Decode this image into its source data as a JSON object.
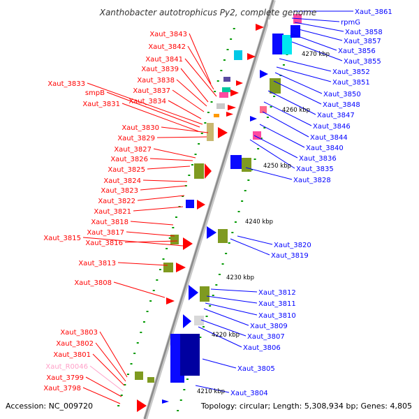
{
  "title": "Xanthobacter autotrophicus Py2, complete genome",
  "footer": {
    "accession": "Accession: NC_009720",
    "summary": "Topology: circular; Length: 5,308,934 bp; Genes: 4,805"
  },
  "colors": {
    "forward": "#ff0000",
    "reverse": "#0000ff",
    "rna": "#ffa0c8",
    "backbone": "#999999",
    "olive": "#7f9a20",
    "tick": "#009900"
  },
  "kbp_ticks": [
    "4270 kbp",
    "4260 kbp",
    "4250 kbp",
    "4240 kbp",
    "4230 kbp",
    "4220 kbp",
    "4210 kbp"
  ],
  "left_labels": [
    {
      "text": "Xaut_3843",
      "strand": "forward"
    },
    {
      "text": "Xaut_3842",
      "strand": "forward"
    },
    {
      "text": "Xaut_3841",
      "strand": "forward"
    },
    {
      "text": "Xaut_3839",
      "strand": "forward"
    },
    {
      "text": "Xaut_3838",
      "strand": "forward"
    },
    {
      "text": "Xaut_3833",
      "strand": "forward"
    },
    {
      "text": "Xaut_3837",
      "strand": "forward"
    },
    {
      "text": "smpB",
      "strand": "forward"
    },
    {
      "text": "Xaut_3831",
      "strand": "forward"
    },
    {
      "text": "Xaut_3834",
      "strand": "forward"
    },
    {
      "text": "Xaut_3830",
      "strand": "forward"
    },
    {
      "text": "Xaut_3829",
      "strand": "forward"
    },
    {
      "text": "Xaut_3827",
      "strand": "forward"
    },
    {
      "text": "Xaut_3826",
      "strand": "forward"
    },
    {
      "text": "Xaut_3825",
      "strand": "forward"
    },
    {
      "text": "Xaut_3824",
      "strand": "forward"
    },
    {
      "text": "Xaut_3823",
      "strand": "forward"
    },
    {
      "text": "Xaut_3822",
      "strand": "forward"
    },
    {
      "text": "Xaut_3821",
      "strand": "forward"
    },
    {
      "text": "Xaut_3818",
      "strand": "forward"
    },
    {
      "text": "Xaut_3817",
      "strand": "forward"
    },
    {
      "text": "Xaut_3815",
      "strand": "forward"
    },
    {
      "text": "Xaut_3816",
      "strand": "forward"
    },
    {
      "text": "Xaut_3813",
      "strand": "forward"
    },
    {
      "text": "Xaut_3808",
      "strand": "forward"
    },
    {
      "text": "Xaut_3803",
      "strand": "forward"
    },
    {
      "text": "Xaut_3802",
      "strand": "forward"
    },
    {
      "text": "Xaut_3801",
      "strand": "forward"
    },
    {
      "text": "Xaut_R0046",
      "strand": "rna"
    },
    {
      "text": "Xaut_3799",
      "strand": "forward"
    },
    {
      "text": "Xaut_3798",
      "strand": "forward"
    }
  ],
  "right_labels": [
    {
      "text": "Xaut_3861",
      "strand": "reverse"
    },
    {
      "text": "rpmG",
      "strand": "reverse"
    },
    {
      "text": "Xaut_3858",
      "strand": "reverse"
    },
    {
      "text": "Xaut_3857",
      "strand": "reverse"
    },
    {
      "text": "Xaut_3856",
      "strand": "reverse"
    },
    {
      "text": "Xaut_3855",
      "strand": "reverse"
    },
    {
      "text": "Xaut_3852",
      "strand": "reverse"
    },
    {
      "text": "Xaut_3851",
      "strand": "reverse"
    },
    {
      "text": "Xaut_3850",
      "strand": "reverse"
    },
    {
      "text": "Xaut_3848",
      "strand": "reverse"
    },
    {
      "text": "Xaut_3847",
      "strand": "reverse"
    },
    {
      "text": "Xaut_3846",
      "strand": "reverse"
    },
    {
      "text": "Xaut_3844",
      "strand": "reverse"
    },
    {
      "text": "Xaut_3840",
      "strand": "reverse"
    },
    {
      "text": "Xaut_3836",
      "strand": "reverse"
    },
    {
      "text": "Xaut_3835",
      "strand": "reverse"
    },
    {
      "text": "Xaut_3828",
      "strand": "reverse"
    },
    {
      "text": "Xaut_3820",
      "strand": "reverse"
    },
    {
      "text": "Xaut_3819",
      "strand": "reverse"
    },
    {
      "text": "Xaut_3812",
      "strand": "reverse"
    },
    {
      "text": "Xaut_3811",
      "strand": "reverse"
    },
    {
      "text": "Xaut_3810",
      "strand": "reverse"
    },
    {
      "text": "Xaut_3809",
      "strand": "reverse"
    },
    {
      "text": "Xaut_3807",
      "strand": "reverse"
    },
    {
      "text": "Xaut_3806",
      "strand": "reverse"
    },
    {
      "text": "Xaut_3805",
      "strand": "reverse"
    },
    {
      "text": "Xaut_3804",
      "strand": "reverse"
    }
  ]
}
